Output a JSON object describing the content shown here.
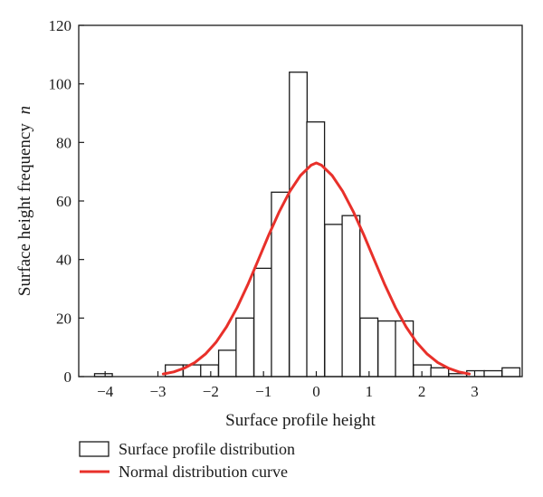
{
  "chart_data": {
    "type": "bar",
    "xlabel": "Surface profile height",
    "ylabel": "Surface height frequency",
    "ylabel_italic_suffix": "n",
    "xlim": [
      -4.5,
      3.9
    ],
    "ylim": [
      0,
      120
    ],
    "x_ticks": [
      -4,
      -3,
      -2,
      -1,
      0,
      1,
      2,
      3
    ],
    "x_tick_labels": [
      "−4",
      "−3",
      "−2",
      "−1",
      "0",
      "1",
      "2",
      "3"
    ],
    "y_ticks": [
      0,
      20,
      40,
      60,
      80,
      100,
      120
    ],
    "y_tick_labels": [
      "0",
      "20",
      "40",
      "60",
      "80",
      "100",
      "120"
    ],
    "bin_width": 0.336,
    "series": [
      {
        "name": "Surface profile distribution",
        "kind": "histogram",
        "color": "#ffffff",
        "edge_color": "#1a1a1a",
        "bins": [
          {
            "x_start": -4.2,
            "value": 1
          },
          {
            "x_start": -2.86,
            "value": 4
          },
          {
            "x_start": -2.52,
            "value": 4
          },
          {
            "x_start": -2.19,
            "value": 4
          },
          {
            "x_start": -1.85,
            "value": 9
          },
          {
            "x_start": -1.52,
            "value": 20
          },
          {
            "x_start": -1.18,
            "value": 37
          },
          {
            "x_start": -0.85,
            "value": 63
          },
          {
            "x_start": -0.51,
            "value": 104
          },
          {
            "x_start": -0.18,
            "value": 87
          },
          {
            "x_start": 0.16,
            "value": 52
          },
          {
            "x_start": 0.49,
            "value": 55
          },
          {
            "x_start": 0.83,
            "value": 20
          },
          {
            "x_start": 1.17,
            "value": 19
          },
          {
            "x_start": 1.5,
            "value": 19
          },
          {
            "x_start": 1.84,
            "value": 4
          },
          {
            "x_start": 2.17,
            "value": 3
          },
          {
            "x_start": 2.51,
            "value": 1
          },
          {
            "x_start": 2.85,
            "value": 2
          },
          {
            "x_start": 3.18,
            "value": 2
          },
          {
            "x_start": 3.52,
            "value": 3
          }
        ]
      },
      {
        "name": "Normal distribution curve",
        "kind": "line",
        "color": "#e8302a",
        "x": [
          -2.9,
          -2.7,
          -2.5,
          -2.3,
          -2.1,
          -1.9,
          -1.7,
          -1.5,
          -1.3,
          -1.1,
          -0.9,
          -0.7,
          -0.5,
          -0.3,
          -0.1,
          0.0,
          0.1,
          0.3,
          0.5,
          0.7,
          0.9,
          1.1,
          1.3,
          1.5,
          1.7,
          1.9,
          2.1,
          2.3,
          2.5,
          2.7,
          2.9
        ],
        "y": [
          0.9,
          1.6,
          2.9,
          4.8,
          7.7,
          11.7,
          17.0,
          23.6,
          31.3,
          39.8,
          48.4,
          56.4,
          63.3,
          68.7,
          72.2,
          73.0,
          72.2,
          68.7,
          63.3,
          56.4,
          48.4,
          39.8,
          31.3,
          23.6,
          17.0,
          11.7,
          7.7,
          4.8,
          2.9,
          1.6,
          0.9
        ]
      }
    ],
    "legend_position": "bottom-left"
  }
}
